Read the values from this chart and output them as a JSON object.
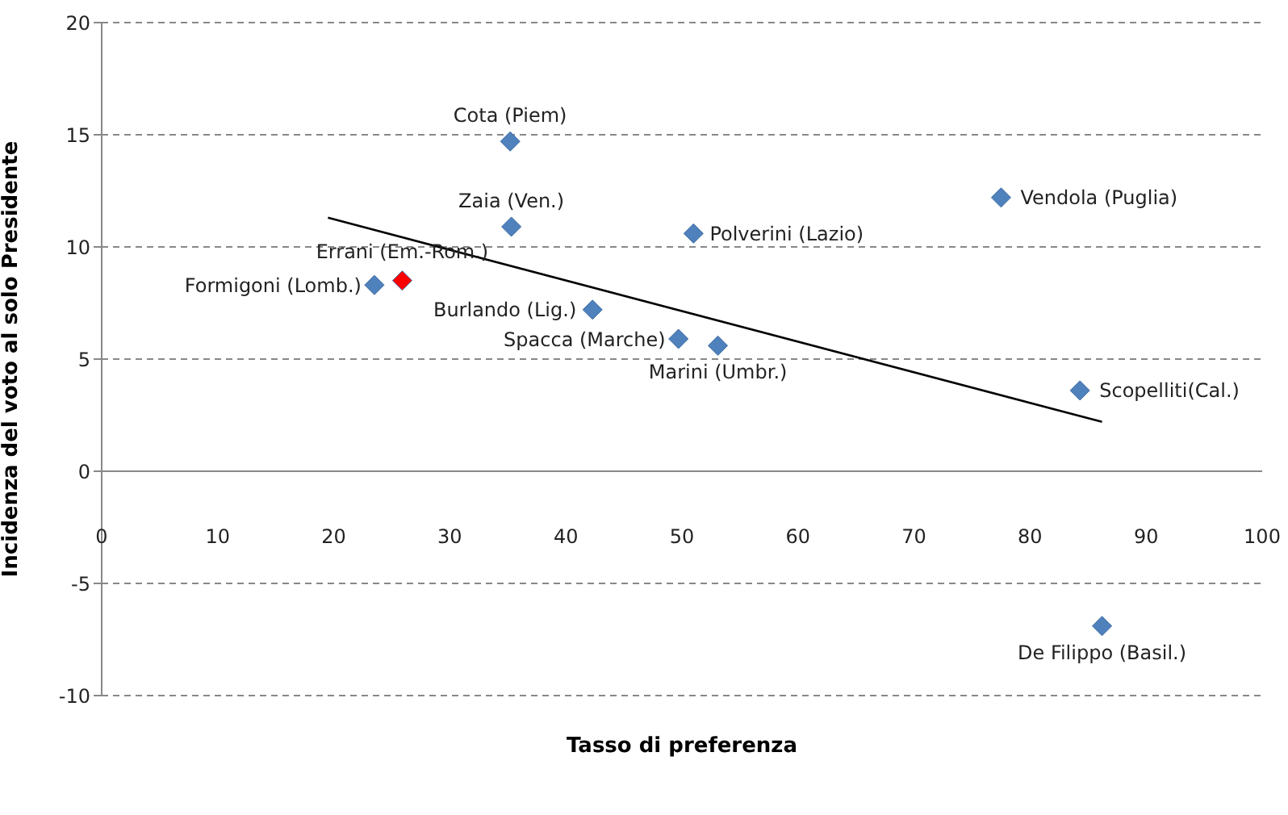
{
  "chart_data": {
    "type": "scatter",
    "xlabel": "Tasso di preferenza",
    "ylabel": "Incidenza del voto al solo Presidente",
    "xlim": [
      0,
      100
    ],
    "xticks": [
      0,
      10,
      20,
      30,
      40,
      50,
      60,
      70,
      80,
      90,
      100
    ],
    "ylim": [
      -10,
      20
    ],
    "yticks": [
      -10,
      -5,
      0,
      5,
      10,
      15,
      20
    ],
    "grid": "y",
    "legend": false,
    "series": [
      {
        "marker": "diamond",
        "color": "#4f81bd",
        "x": [
          35.2,
          35.3,
          51.0,
          77.5,
          23.5,
          25.9,
          42.3,
          49.7,
          53.1,
          84.3,
          86.2
        ],
        "values": [
          14.7,
          10.9,
          10.6,
          12.2,
          8.3,
          8.5,
          7.2,
          5.9,
          5.6,
          3.6,
          -6.9
        ],
        "colors": [
          "#4f81bd",
          "#4f81bd",
          "#4f81bd",
          "#4f81bd",
          "#4f81bd",
          "#ff0000",
          "#4f81bd",
          "#4f81bd",
          "#4f81bd",
          "#4f81bd",
          "#4f81bd"
        ]
      },
      {
        "type": "line",
        "marker": "none",
        "color": "#000000",
        "x": [
          19.5,
          86.2
        ],
        "values": [
          11.3,
          2.2
        ]
      }
    ],
    "annotations": [
      {
        "text": "Cota (Piem)",
        "x": 35.2,
        "y": 14.7
      },
      {
        "text": "Zaia (Ven.)",
        "x": 35.3,
        "y": 10.9
      },
      {
        "text": "Polverini (Lazio)",
        "x": 51.0,
        "y": 10.6
      },
      {
        "text": "Vendola (Puglia)",
        "x": 77.5,
        "y": 12.2
      },
      {
        "text": "Formigoni (Lomb.)",
        "x": 23.5,
        "y": 8.3
      },
      {
        "text": "Errani (Em.-Rom.)",
        "x": 25.9,
        "y": 8.5
      },
      {
        "text": "Burlando (Lig.)",
        "x": 42.3,
        "y": 7.2
      },
      {
        "text": "Spacca (Marche)",
        "x": 49.7,
        "y": 5.9
      },
      {
        "text": "Marini (Umbr.)",
        "x": 53.1,
        "y": 5.6
      },
      {
        "text": "Scopelliti(Cal.)",
        "x": 84.3,
        "y": 3.6
      },
      {
        "text": "De Filippo (Basil.)",
        "x": 86.2,
        "y": -6.9
      }
    ]
  }
}
